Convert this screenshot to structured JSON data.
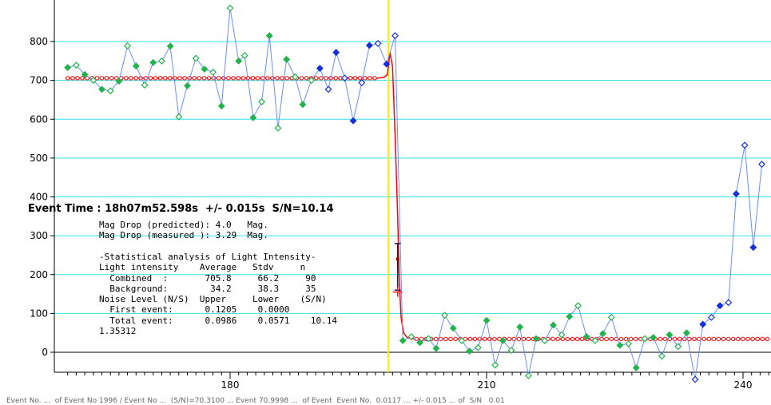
{
  "chart_data": {
    "type": "line",
    "title": "",
    "xlabel": "",
    "ylabel": "",
    "xlim": [
      161,
      243
    ],
    "ylim": [
      -80,
      900
    ],
    "x_ticks": [
      180,
      210,
      240
    ],
    "y_ticks": [
      0,
      100,
      200,
      300,
      400,
      500,
      600,
      700,
      800
    ],
    "y_grid": [
      0,
      100,
      200,
      300,
      400,
      500,
      600,
      700,
      800
    ],
    "event_time_x": 198.5,
    "series": [
      {
        "type": "light-curve",
        "color": "#6b8cff",
        "points": [
          {
            "x": 161.0,
            "y": 733,
            "c": "g"
          },
          {
            "x": 162.0,
            "y": 739,
            "c": "g"
          },
          {
            "x": 163.0,
            "y": 715,
            "c": "g"
          },
          {
            "x": 164.0,
            "y": 700,
            "c": "g"
          },
          {
            "x": 165.0,
            "y": 677,
            "c": "g"
          },
          {
            "x": 166.0,
            "y": 673,
            "c": "g"
          },
          {
            "x": 167.0,
            "y": 698,
            "c": "g"
          },
          {
            "x": 168.0,
            "y": 789,
            "c": "g"
          },
          {
            "x": 169.0,
            "y": 737,
            "c": "g"
          },
          {
            "x": 170.0,
            "y": 688,
            "c": "g"
          },
          {
            "x": 171.0,
            "y": 746,
            "c": "g"
          },
          {
            "x": 172.0,
            "y": 750,
            "c": "g"
          },
          {
            "x": 173.0,
            "y": 788,
            "c": "g"
          },
          {
            "x": 174.0,
            "y": 606,
            "c": "g"
          },
          {
            "x": 175.0,
            "y": 686,
            "c": "g"
          },
          {
            "x": 176.0,
            "y": 757,
            "c": "g"
          },
          {
            "x": 177.0,
            "y": 729,
            "c": "g"
          },
          {
            "x": 178.0,
            "y": 721,
            "c": "g"
          },
          {
            "x": 179.0,
            "y": 634,
            "c": "g"
          },
          {
            "x": 180.0,
            "y": 886,
            "c": "g"
          },
          {
            "x": 181.0,
            "y": 750,
            "c": "g"
          },
          {
            "x": 181.7,
            "y": 764,
            "c": "g"
          },
          {
            "x": 182.7,
            "y": 604,
            "c": "g"
          },
          {
            "x": 183.7,
            "y": 645,
            "c": "g"
          },
          {
            "x": 184.6,
            "y": 815,
            "c": "g"
          },
          {
            "x": 185.6,
            "y": 577,
            "c": "g"
          },
          {
            "x": 186.6,
            "y": 754,
            "c": "g"
          },
          {
            "x": 187.6,
            "y": 709,
            "c": "g"
          },
          {
            "x": 188.5,
            "y": 638,
            "c": "g"
          },
          {
            "x": 189.5,
            "y": 700,
            "c": "g"
          },
          {
            "x": 190.5,
            "y": 731,
            "c": "b"
          },
          {
            "x": 191.5,
            "y": 677,
            "c": "b"
          },
          {
            "x": 192.4,
            "y": 772,
            "c": "b"
          },
          {
            "x": 193.4,
            "y": 706,
            "c": "b"
          },
          {
            "x": 194.4,
            "y": 596,
            "c": "b"
          },
          {
            "x": 195.4,
            "y": 694,
            "c": "b"
          },
          {
            "x": 196.3,
            "y": 790,
            "c": "b"
          },
          {
            "x": 197.3,
            "y": 795,
            "c": "b"
          },
          {
            "x": 198.3,
            "y": 742,
            "c": "b"
          },
          {
            "x": 199.3,
            "y": 815,
            "c": "b"
          },
          {
            "x": 200.2,
            "y": 30,
            "c": "g"
          },
          {
            "x": 201.2,
            "y": 40,
            "c": "g"
          },
          {
            "x": 202.2,
            "y": 25,
            "c": "g"
          },
          {
            "x": 203.2,
            "y": 35,
            "c": "g"
          },
          {
            "x": 204.1,
            "y": 10,
            "c": "g"
          },
          {
            "x": 205.1,
            "y": 95,
            "c": "g"
          },
          {
            "x": 206.1,
            "y": 62,
            "c": "g"
          },
          {
            "x": 207.1,
            "y": 30,
            "c": "g"
          },
          {
            "x": 208.0,
            "y": 3,
            "c": "g"
          },
          {
            "x": 209.0,
            "y": 12,
            "c": "g"
          },
          {
            "x": 210.0,
            "y": 82,
            "c": "g"
          },
          {
            "x": 211.0,
            "y": -33,
            "c": "g"
          },
          {
            "x": 211.9,
            "y": 30,
            "c": "g"
          },
          {
            "x": 212.9,
            "y": 5,
            "c": "g"
          },
          {
            "x": 213.9,
            "y": 65,
            "c": "g"
          },
          {
            "x": 214.9,
            "y": -60,
            "c": "g"
          },
          {
            "x": 215.8,
            "y": 35,
            "c": "g"
          },
          {
            "x": 216.8,
            "y": 30,
            "c": "g"
          },
          {
            "x": 217.8,
            "y": 70,
            "c": "g"
          },
          {
            "x": 218.8,
            "y": 45,
            "c": "g"
          },
          {
            "x": 219.7,
            "y": 92,
            "c": "g"
          },
          {
            "x": 220.7,
            "y": 120,
            "c": "g"
          },
          {
            "x": 221.7,
            "y": 40,
            "c": "g"
          },
          {
            "x": 222.7,
            "y": 30,
            "c": "g"
          },
          {
            "x": 223.6,
            "y": 48,
            "c": "g"
          },
          {
            "x": 224.6,
            "y": 90,
            "c": "g"
          },
          {
            "x": 225.6,
            "y": 18,
            "c": "g"
          },
          {
            "x": 226.6,
            "y": 22,
            "c": "g"
          },
          {
            "x": 227.5,
            "y": -40,
            "c": "g"
          },
          {
            "x": 228.5,
            "y": 35,
            "c": "g"
          },
          {
            "x": 229.5,
            "y": 38,
            "c": "g"
          },
          {
            "x": 230.5,
            "y": -10,
            "c": "g"
          },
          {
            "x": 231.4,
            "y": 45,
            "c": "g"
          },
          {
            "x": 232.4,
            "y": 15,
            "c": "g"
          },
          {
            "x": 233.4,
            "y": 50,
            "c": "g"
          },
          {
            "x": 234.4,
            "y": -70,
            "c": "b"
          },
          {
            "x": 235.3,
            "y": 72,
            "c": "b"
          },
          {
            "x": 236.3,
            "y": 90,
            "c": "b"
          },
          {
            "x": 237.3,
            "y": 120,
            "c": "b"
          },
          {
            "x": 238.3,
            "y": 128,
            "c": "b"
          },
          {
            "x": 239.2,
            "y": 408,
            "c": "b"
          },
          {
            "x": 240.2,
            "y": 533,
            "c": "b"
          },
          {
            "x": 241.2,
            "y": 270,
            "c": "b"
          },
          {
            "x": 242.2,
            "y": 484,
            "c": "b"
          }
        ]
      },
      {
        "type": "model",
        "color": "#ff0000",
        "baseline_upper": 705.8,
        "baseline_lower": 34.2,
        "x_start": 161,
        "x_end": 243,
        "marker_step": 0.57,
        "drop_points": [
          {
            "x": 197.0,
            "y": 705
          },
          {
            "x": 198.0,
            "y": 708
          },
          {
            "x": 198.4,
            "y": 715
          },
          {
            "x": 198.7,
            "y": 772
          },
          {
            "x": 199.0,
            "y": 735
          },
          {
            "x": 199.3,
            "y": 560
          },
          {
            "x": 199.6,
            "y": 350
          },
          {
            "x": 199.8,
            "y": 180
          },
          {
            "x": 200.0,
            "y": 90
          },
          {
            "x": 200.3,
            "y": 50
          },
          {
            "x": 200.7,
            "y": 38
          },
          {
            "x": 201.2,
            "y": 34.2
          }
        ]
      }
    ],
    "error_bar": {
      "x": 199.6,
      "y_low": 160,
      "y_high": 280,
      "mark": 240
    },
    "cross_marker": {
      "x": 199.6,
      "y": 155
    },
    "annotation": {
      "event_time": "Event Time : 18h07m52.598s  +/- 0.015s  S/N=10.14",
      "lines": [
        "Mag Drop (predicted): 4.0   Mag.",
        "Mag Drop (measured ): 3.29  Mag.",
        "",
        "-Statistical analysis of Light Intensity-",
        "Light intensity    Average   Stdv     n",
        "  Combined  :       705.8     66.2     90",
        "  Background:        34.2     38.3     35",
        "Noise Level (N/S)  Upper     Lower    (S/N)",
        "  First event:      0.1205    0.0000",
        "  Total event:      0.0986    0.0571    10.14",
        "1.35312"
      ]
    },
    "footer": "Event No. ...  of Event No 1996 / Event No ...  (S/N)=70.3100 ... Event 70.9998 ...  of Event  Event No.  0.0117 ... +/- 0.015 ... of  S/N   0.01"
  }
}
